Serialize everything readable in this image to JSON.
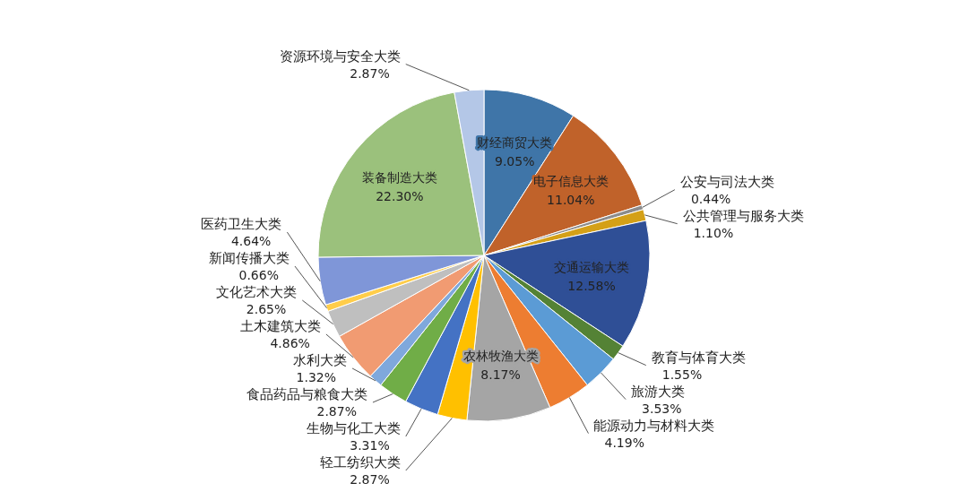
{
  "chart_data": {
    "type": "pie",
    "value_labels": [
      "9.05%",
      "11.04%",
      "0.44%",
      "1.10%",
      "12.58%",
      "1.55%",
      "3.53%",
      "4.19%",
      "8.17%",
      "2.87%",
      "3.31%",
      "2.87%",
      "1.32%",
      "4.86%",
      "2.65%",
      "0.66%",
      "4.64%",
      "22.30%",
      "2.87%"
    ],
    "categories": [
      "财经商贸大类",
      "电子信息大类",
      "公安与司法大类",
      "公共管理与服务大类",
      "交通运输大类",
      "教育与体育大类",
      "旅游大类",
      "能源动力与材料大类",
      "农林牧渔大类",
      "轻工纺织大类",
      "生物与化工大类",
      "食品药品与粮食大类",
      "水利大类",
      "土木建筑大类",
      "文化艺术大类",
      "新闻传播大类",
      "医药卫生大类",
      "装备制造大类",
      "资源环境与安全大类"
    ],
    "values": [
      9.05,
      11.04,
      0.44,
      1.1,
      12.58,
      1.55,
      3.53,
      4.19,
      8.17,
      2.87,
      3.31,
      2.87,
      1.32,
      4.86,
      2.65,
      0.66,
      4.64,
      22.3,
      2.87
    ],
    "colors": [
      "#3f75a8",
      "#c0622a",
      "#8c8c8c",
      "#d4a017",
      "#2f4f96",
      "#548235",
      "#5b9bd5",
      "#ed7d31",
      "#a5a5a5",
      "#ffc000",
      "#4472c4",
      "#70ad47",
      "#7fa8dc",
      "#f19b72",
      "#bfbfbf",
      "#ffcd4a",
      "#7f96d8",
      "#9bc17c",
      "#b4c7e7"
    ]
  }
}
